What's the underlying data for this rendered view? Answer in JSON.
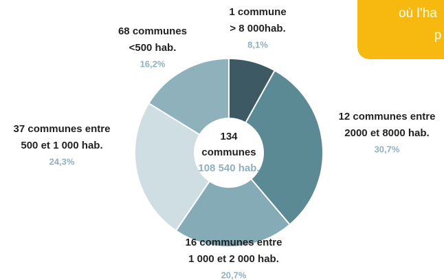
{
  "chart_data": {
    "type": "donut",
    "categories": [
      [
        "1 commune",
        "> 8 000hab."
      ],
      [
        "12 communes entre",
        "2000 et 8000 hab."
      ],
      [
        "16 communes entre",
        "1 000 et 2 000 hab."
      ],
      [
        "37 communes entre",
        "500 et 1 000 hab."
      ],
      [
        "68 communes",
        "<500 hab."
      ]
    ],
    "values": [
      8.1,
      30.7,
      20.7,
      24.3,
      16.2
    ],
    "value_labels": [
      "8,1%",
      "30,7%",
      "20,7%",
      "24,3%",
      "16,2%"
    ],
    "colors": [
      "#3d5a64",
      "#5b8994",
      "#84abb6",
      "#cfdee3",
      "#8fb1bb"
    ],
    "center_label": [
      "134",
      "communes",
      "108 540 hab."
    ],
    "annotation": [
      "où l’ha",
      "p"
    ]
  }
}
